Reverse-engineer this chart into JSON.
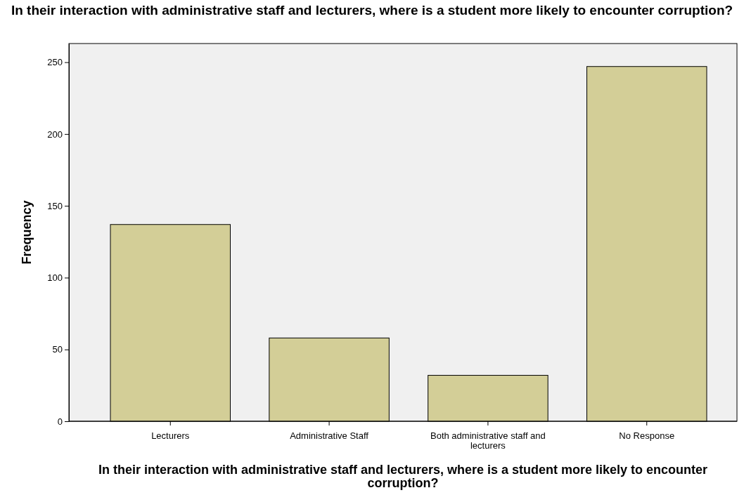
{
  "chart_data": {
    "type": "bar",
    "title": "In their interaction with administrative staff and lecturers, where is a student more likely to encounter corruption?",
    "xlabel": "In their interaction with administrative staff and lecturers, where is a student more likely to encounter corruption?",
    "ylabel": "Frequency",
    "categories": [
      "Lecturers",
      "Administrative Staff",
      "Both administrative staff and lecturers",
      "No Response"
    ],
    "values": [
      137,
      58,
      32,
      247
    ],
    "color": "#d3ce97",
    "ylim": [
      0,
      263
    ],
    "yticks": [
      0,
      50,
      100,
      150,
      200,
      250
    ],
    "grid": false
  }
}
